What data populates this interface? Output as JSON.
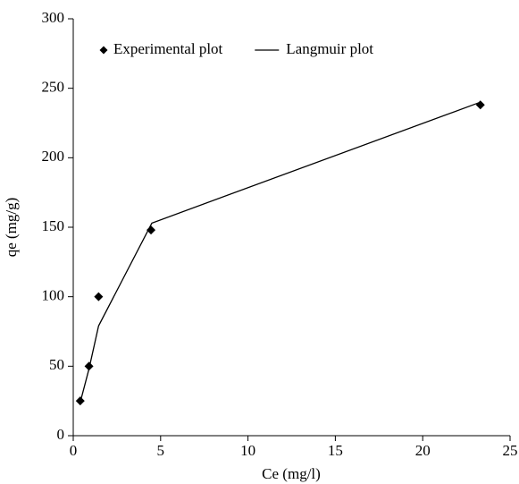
{
  "chart_data": {
    "type": "scatter",
    "x_label": "Ce (mg/l)",
    "y_label": "qe (mg/g)",
    "series": [
      {
        "name": "Experimental plot",
        "type": "scatter",
        "color": "#000000",
        "x": [
          0.4,
          0.9,
          1.45,
          4.45,
          23.3
        ],
        "values": [
          25,
          50,
          100,
          148,
          238
        ]
      },
      {
        "name": "Langmuir plot",
        "type": "line",
        "color": "#000000",
        "x": [
          0.4,
          0.9,
          1.45,
          4.5,
          23.3
        ],
        "values": [
          24,
          48,
          79,
          153,
          240
        ]
      }
    ],
    "xlim": [
      0,
      25
    ],
    "xticks": [
      0,
      5,
      10,
      15,
      20,
      25
    ],
    "ylim": [
      0,
      300
    ],
    "yticks": [
      0,
      50,
      100,
      150,
      200,
      250,
      300
    ],
    "grid": false,
    "legend": "top"
  }
}
